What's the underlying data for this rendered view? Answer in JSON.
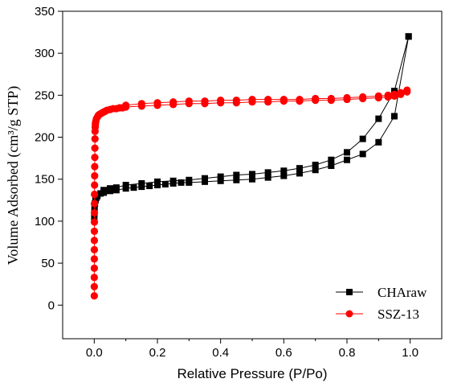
{
  "chart_data": {
    "type": "scatter",
    "xlabel": "Relative Pressure (P/Po)",
    "ylabel": "Volume Adsorbed (cm³/g STP)",
    "xlim": [
      -0.1,
      1.1
    ],
    "ylim": [
      -40,
      350
    ],
    "x_ticks": [
      0.0,
      0.2,
      0.4,
      0.6,
      0.8,
      1.0
    ],
    "x_tick_labels": [
      "0.0",
      "0.2",
      "0.4",
      "0.6",
      "0.8",
      "1.0"
    ],
    "y_ticks": [
      0,
      50,
      100,
      150,
      200,
      250,
      300,
      350
    ],
    "y_tick_labels": [
      "0",
      "50",
      "100",
      "150",
      "200",
      "250",
      "300",
      "350"
    ],
    "grid": false,
    "legend_position": "bottom-right",
    "series": [
      {
        "name": "CHAraw",
        "color": "#000000",
        "marker": "square",
        "line_color": "#000000",
        "adsorption": {
          "x": [
            0.0002,
            0.0005,
            0.001,
            0.002,
            0.004,
            0.007,
            0.01,
            0.02,
            0.03,
            0.05,
            0.07,
            0.1,
            0.125,
            0.15,
            0.175,
            0.2,
            0.225,
            0.25,
            0.275,
            0.3,
            0.35,
            0.4,
            0.45,
            0.5,
            0.55,
            0.6,
            0.65,
            0.7,
            0.75,
            0.8,
            0.85,
            0.9,
            0.95,
            0.995
          ],
          "y": [
            104,
            110,
            116,
            121,
            125,
            128,
            130,
            133,
            134,
            136,
            137,
            139,
            140,
            141,
            142,
            143,
            144,
            145,
            146,
            146,
            147,
            148,
            149,
            150,
            152,
            154,
            157,
            161,
            166,
            173,
            180,
            194,
            225,
            320
          ]
        },
        "desorption": {
          "x": [
            0.995,
            0.95,
            0.9,
            0.85,
            0.8,
            0.75,
            0.7,
            0.65,
            0.6,
            0.55,
            0.5,
            0.45,
            0.4,
            0.35,
            0.3,
            0.25,
            0.2,
            0.15,
            0.1,
            0.07,
            0.05,
            0.03
          ],
          "y": [
            320,
            255,
            222,
            198,
            182,
            173,
            167,
            163,
            160,
            158,
            156,
            155,
            153,
            151,
            149,
            148,
            147,
            145,
            143,
            140,
            139,
            137
          ]
        }
      },
      {
        "name": "SSZ-13",
        "color": "#ff0000",
        "marker": "circle",
        "line_color": "#ff0000",
        "adsorption": {
          "x": [
            0.0001,
            0.0001,
            0.0001,
            0.0002,
            0.0002,
            0.0003,
            0.0003,
            0.0004,
            0.0005,
            0.0006,
            0.0007,
            0.0008,
            0.001,
            0.0012,
            0.0015,
            0.0018,
            0.002,
            0.0023,
            0.0026,
            0.003,
            0.0035,
            0.004,
            0.005,
            0.007,
            0.01,
            0.013,
            0.016,
            0.02,
            0.025,
            0.03,
            0.035,
            0.04,
            0.05,
            0.06,
            0.07,
            0.08,
            0.09,
            0.1,
            0.15,
            0.2,
            0.25,
            0.3,
            0.35,
            0.4,
            0.45,
            0.5,
            0.55,
            0.6,
            0.65,
            0.7,
            0.75,
            0.8,
            0.85,
            0.9,
            0.93,
            0.95,
            0.97,
            0.99
          ],
          "y": [
            11,
            22,
            33,
            44,
            55,
            66,
            77,
            88,
            99,
            110,
            121,
            132,
            143,
            154,
            165,
            176,
            187,
            198,
            207,
            212,
            215,
            217,
            219,
            222,
            224,
            226,
            227,
            228,
            229,
            230,
            231,
            232,
            233,
            234,
            234,
            235,
            235,
            236,
            237,
            238,
            239,
            240,
            240,
            241,
            241,
            242,
            242,
            243,
            243,
            244,
            244,
            245,
            246,
            247,
            248,
            249,
            251,
            254
          ]
        },
        "desorption": {
          "x": [
            0.99,
            0.97,
            0.95,
            0.93,
            0.9,
            0.85,
            0.8,
            0.75,
            0.7,
            0.65,
            0.6,
            0.55,
            0.5,
            0.45,
            0.4,
            0.35,
            0.3,
            0.25,
            0.2,
            0.15,
            0.1
          ],
          "y": [
            256,
            253,
            251,
            250,
            249,
            248,
            247,
            246,
            246,
            245,
            245,
            245,
            245,
            244,
            244,
            243,
            243,
            242,
            241,
            240,
            238
          ]
        }
      }
    ]
  }
}
